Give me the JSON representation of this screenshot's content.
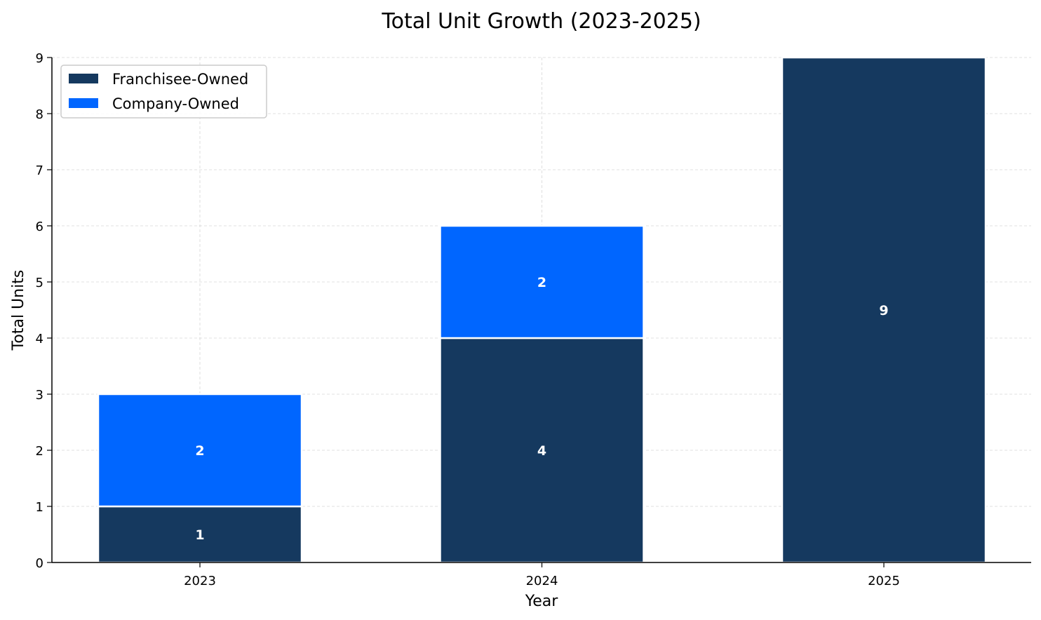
{
  "chart_data": {
    "type": "bar",
    "stacked": true,
    "title": "Total Unit Growth (2023-2025)",
    "xlabel": "Year",
    "ylabel": "Total Units",
    "categories": [
      "2023",
      "2024",
      "2025"
    ],
    "series": [
      {
        "name": "Franchisee-Owned",
        "values": [
          1,
          4,
          9
        ],
        "color": "#15395f"
      },
      {
        "name": "Company-Owned",
        "values": [
          2,
          2,
          0
        ],
        "color": "#0066ff"
      }
    ],
    "ylim": [
      0,
      9
    ],
    "yticks": [
      "0",
      "1",
      "2",
      "3",
      "4",
      "5",
      "6",
      "7",
      "8",
      "9"
    ],
    "grid": true,
    "legend_position": "top-left"
  }
}
